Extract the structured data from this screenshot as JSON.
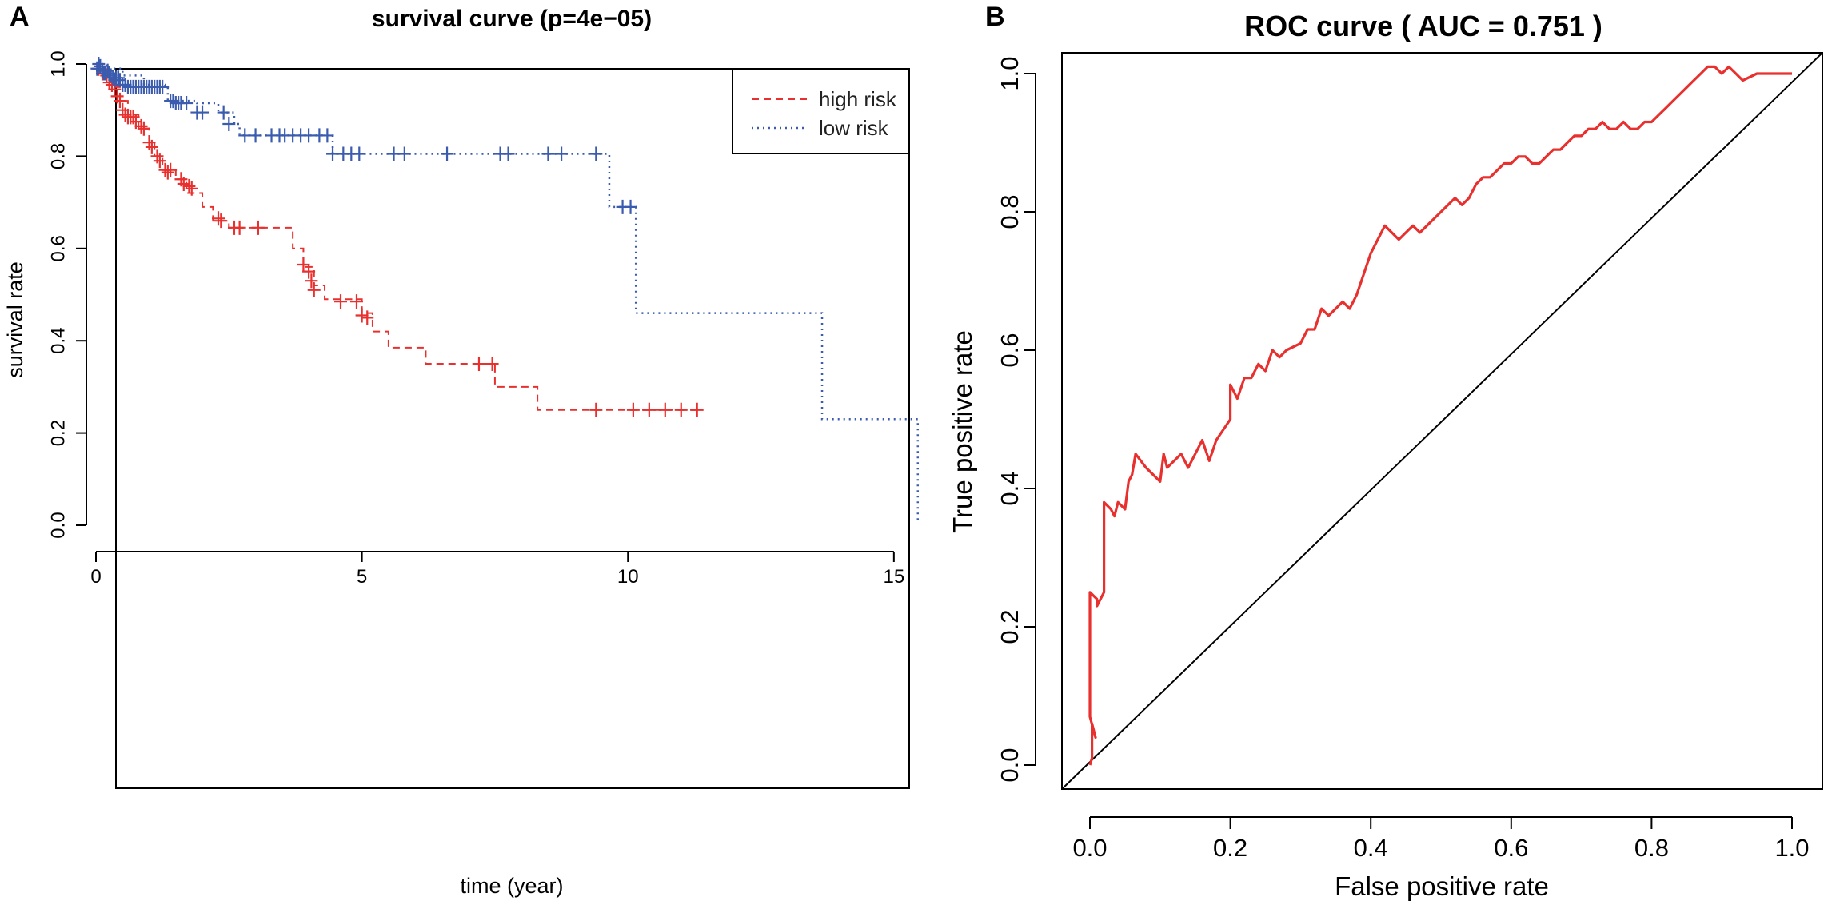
{
  "chart_data": [
    {
      "panel": "A",
      "type": "line",
      "subtype": "kaplan-meier",
      "title": "survival curve (p=4e−05)",
      "xlabel": "time (year)",
      "ylabel": "survival rate",
      "xlim": [
        0,
        15.5
      ],
      "ylim": [
        0,
        1
      ],
      "xticks": [
        0,
        5,
        10,
        15
      ],
      "yticks": [
        0.0,
        0.2,
        0.4,
        0.6,
        0.8,
        1.0
      ],
      "legend": {
        "position": "top-right",
        "entries": [
          "high risk",
          "low risk"
        ]
      },
      "series": [
        {
          "name": "high risk",
          "color": "#e8302e",
          "linestyle": "dashed",
          "steps": [
            [
              0,
              0.99
            ],
            [
              0.15,
              0.97
            ],
            [
              0.3,
              0.95
            ],
            [
              0.45,
              0.92
            ],
            [
              0.6,
              0.89
            ],
            [
              0.8,
              0.86
            ],
            [
              1.0,
              0.83
            ],
            [
              1.1,
              0.8
            ],
            [
              1.25,
              0.77
            ],
            [
              1.5,
              0.75
            ],
            [
              1.7,
              0.72
            ],
            [
              2.0,
              0.69
            ],
            [
              2.2,
              0.66
            ],
            [
              2.5,
              0.645
            ],
            [
              3.7,
              0.6
            ],
            [
              3.9,
              0.56
            ],
            [
              4.1,
              0.52
            ],
            [
              4.3,
              0.49
            ],
            [
              5.0,
              0.46
            ],
            [
              5.2,
              0.42
            ],
            [
              5.5,
              0.385
            ],
            [
              6.2,
              0.35
            ],
            [
              7.5,
              0.3
            ],
            [
              8.3,
              0.25
            ],
            [
              11.3,
              0.25
            ]
          ],
          "censored": [
            [
              0.05,
              0.99
            ],
            [
              0.12,
              0.98
            ],
            [
              0.2,
              0.975
            ],
            [
              0.25,
              0.96
            ],
            [
              0.3,
              0.955
            ],
            [
              0.35,
              0.945
            ],
            [
              0.4,
              0.93
            ],
            [
              0.45,
              0.92
            ],
            [
              0.5,
              0.9
            ],
            [
              0.55,
              0.89
            ],
            [
              0.6,
              0.885
            ],
            [
              0.65,
              0.885
            ],
            [
              0.7,
              0.885
            ],
            [
              0.75,
              0.875
            ],
            [
              0.85,
              0.865
            ],
            [
              0.9,
              0.86
            ],
            [
              1.0,
              0.83
            ],
            [
              1.05,
              0.82
            ],
            [
              1.15,
              0.8
            ],
            [
              1.2,
              0.79
            ],
            [
              1.3,
              0.77
            ],
            [
              1.35,
              0.765
            ],
            [
              1.4,
              0.77
            ],
            [
              1.6,
              0.75
            ],
            [
              1.65,
              0.74
            ],
            [
              1.75,
              0.735
            ],
            [
              1.8,
              0.73
            ],
            [
              2.3,
              0.665
            ],
            [
              2.35,
              0.66
            ],
            [
              2.6,
              0.645
            ],
            [
              2.7,
              0.645
            ],
            [
              3.05,
              0.645
            ],
            [
              3.9,
              0.565
            ],
            [
              4.0,
              0.55
            ],
            [
              4.05,
              0.53
            ],
            [
              4.1,
              0.51
            ],
            [
              4.6,
              0.485
            ],
            [
              4.9,
              0.485
            ],
            [
              5.0,
              0.455
            ],
            [
              5.1,
              0.45
            ],
            [
              7.2,
              0.35
            ],
            [
              7.45,
              0.35
            ],
            [
              9.4,
              0.25
            ],
            [
              10.1,
              0.25
            ],
            [
              10.4,
              0.25
            ],
            [
              10.7,
              0.25
            ],
            [
              11.0,
              0.25
            ],
            [
              11.3,
              0.25
            ]
          ]
        },
        {
          "name": "low risk",
          "color": "#3b5cae",
          "linestyle": "dotted",
          "steps": [
            [
              0,
              1.0
            ],
            [
              0.2,
              0.99
            ],
            [
              0.5,
              0.975
            ],
            [
              0.9,
              0.955
            ],
            [
              1.3,
              0.95
            ],
            [
              1.35,
              0.92
            ],
            [
              1.9,
              0.915
            ],
            [
              2.3,
              0.895
            ],
            [
              2.6,
              0.87
            ],
            [
              2.7,
              0.845
            ],
            [
              4.4,
              0.845
            ],
            [
              4.45,
              0.805
            ],
            [
              9.6,
              0.805
            ],
            [
              9.65,
              0.69
            ],
            [
              10.1,
              0.69
            ],
            [
              10.15,
              0.46
            ],
            [
              13.6,
              0.46
            ],
            [
              13.65,
              0.23
            ],
            [
              15.4,
              0.23
            ],
            [
              15.45,
              0.005
            ]
          ],
          "censored": [
            [
              0.02,
              0.99
            ],
            [
              0.05,
              1.0
            ],
            [
              0.08,
              0.995
            ],
            [
              0.12,
              0.985
            ],
            [
              0.15,
              0.98
            ],
            [
              0.18,
              0.98
            ],
            [
              0.22,
              0.985
            ],
            [
              0.25,
              0.98
            ],
            [
              0.28,
              0.975
            ],
            [
              0.32,
              0.97
            ],
            [
              0.35,
              0.965
            ],
            [
              0.38,
              0.97
            ],
            [
              0.42,
              0.97
            ],
            [
              0.45,
              0.965
            ],
            [
              0.5,
              0.955
            ],
            [
              0.55,
              0.955
            ],
            [
              0.6,
              0.95
            ],
            [
              0.65,
              0.95
            ],
            [
              0.7,
              0.95
            ],
            [
              0.75,
              0.95
            ],
            [
              0.8,
              0.95
            ],
            [
              0.85,
              0.95
            ],
            [
              0.9,
              0.95
            ],
            [
              0.95,
              0.95
            ],
            [
              1.0,
              0.95
            ],
            [
              1.05,
              0.95
            ],
            [
              1.1,
              0.95
            ],
            [
              1.15,
              0.95
            ],
            [
              1.2,
              0.95
            ],
            [
              1.25,
              0.95
            ],
            [
              1.4,
              0.92
            ],
            [
              1.45,
              0.92
            ],
            [
              1.5,
              0.915
            ],
            [
              1.55,
              0.915
            ],
            [
              1.6,
              0.915
            ],
            [
              1.7,
              0.915
            ],
            [
              1.9,
              0.895
            ],
            [
              2.0,
              0.895
            ],
            [
              2.4,
              0.895
            ],
            [
              2.5,
              0.87
            ],
            [
              2.8,
              0.845
            ],
            [
              3.0,
              0.845
            ],
            [
              3.3,
              0.845
            ],
            [
              3.45,
              0.845
            ],
            [
              3.55,
              0.845
            ],
            [
              3.7,
              0.845
            ],
            [
              3.85,
              0.845
            ],
            [
              4.0,
              0.845
            ],
            [
              4.2,
              0.845
            ],
            [
              4.35,
              0.845
            ],
            [
              4.45,
              0.805
            ],
            [
              4.65,
              0.805
            ],
            [
              4.8,
              0.805
            ],
            [
              4.95,
              0.805
            ],
            [
              5.6,
              0.805
            ],
            [
              5.8,
              0.805
            ],
            [
              6.6,
              0.805
            ],
            [
              7.6,
              0.805
            ],
            [
              7.75,
              0.805
            ],
            [
              8.5,
              0.805
            ],
            [
              8.75,
              0.805
            ],
            [
              9.4,
              0.805
            ],
            [
              9.9,
              0.69
            ],
            [
              10.05,
              0.69
            ]
          ]
        }
      ]
    },
    {
      "panel": "B",
      "type": "line",
      "subtype": "roc",
      "title": "ROC curve ( AUC =  0.751 )",
      "xlabel": "False positive rate",
      "ylabel": "True positive rate",
      "xlim": [
        0,
        1
      ],
      "ylim": [
        0,
        1
      ],
      "xticks": [
        0.0,
        0.2,
        0.4,
        0.6,
        0.8,
        1.0
      ],
      "yticks": [
        0.0,
        0.2,
        0.4,
        0.6,
        0.8,
        1.0
      ],
      "auc": 0.751,
      "diagonal": true,
      "series": [
        {
          "name": "ROC",
          "color": "#e8302e",
          "points": [
            [
              0,
              0
            ],
            [
              0.003,
              0.01
            ],
            [
              0.003,
              0.06
            ],
            [
              0.008,
              0.04
            ],
            [
              0.0,
              0.07
            ],
            [
              0.0,
              0.25
            ],
            [
              0.01,
              0.24
            ],
            [
              0.01,
              0.23
            ],
            [
              0.02,
              0.25
            ],
            [
              0.02,
              0.32
            ],
            [
              0.02,
              0.38
            ],
            [
              0.03,
              0.37
            ],
            [
              0.035,
              0.36
            ],
            [
              0.04,
              0.38
            ],
            [
              0.05,
              0.37
            ],
            [
              0.055,
              0.41
            ],
            [
              0.06,
              0.42
            ],
            [
              0.065,
              0.45
            ],
            [
              0.08,
              0.43
            ],
            [
              0.09,
              0.42
            ],
            [
              0.1,
              0.41
            ],
            [
              0.105,
              0.45
            ],
            [
              0.11,
              0.43
            ],
            [
              0.12,
              0.44
            ],
            [
              0.13,
              0.45
            ],
            [
              0.14,
              0.43
            ],
            [
              0.15,
              0.45
            ],
            [
              0.16,
              0.47
            ],
            [
              0.17,
              0.44
            ],
            [
              0.18,
              0.47
            ],
            [
              0.2,
              0.5
            ],
            [
              0.2,
              0.55
            ],
            [
              0.21,
              0.53
            ],
            [
              0.22,
              0.56
            ],
            [
              0.23,
              0.56
            ],
            [
              0.24,
              0.58
            ],
            [
              0.25,
              0.57
            ],
            [
              0.26,
              0.6
            ],
            [
              0.27,
              0.59
            ],
            [
              0.28,
              0.6
            ],
            [
              0.3,
              0.61
            ],
            [
              0.31,
              0.63
            ],
            [
              0.32,
              0.63
            ],
            [
              0.33,
              0.66
            ],
            [
              0.34,
              0.65
            ],
            [
              0.35,
              0.66
            ],
            [
              0.36,
              0.67
            ],
            [
              0.37,
              0.66
            ],
            [
              0.38,
              0.68
            ],
            [
              0.39,
              0.71
            ],
            [
              0.4,
              0.74
            ],
            [
              0.41,
              0.76
            ],
            [
              0.42,
              0.78
            ],
            [
              0.43,
              0.77
            ],
            [
              0.44,
              0.76
            ],
            [
              0.45,
              0.77
            ],
            [
              0.46,
              0.78
            ],
            [
              0.47,
              0.77
            ],
            [
              0.48,
              0.78
            ],
            [
              0.49,
              0.79
            ],
            [
              0.5,
              0.8
            ],
            [
              0.51,
              0.81
            ],
            [
              0.52,
              0.82
            ],
            [
              0.53,
              0.81
            ],
            [
              0.54,
              0.82
            ],
            [
              0.55,
              0.84
            ],
            [
              0.56,
              0.85
            ],
            [
              0.57,
              0.85
            ],
            [
              0.58,
              0.86
            ],
            [
              0.59,
              0.87
            ],
            [
              0.6,
              0.87
            ],
            [
              0.61,
              0.88
            ],
            [
              0.62,
              0.88
            ],
            [
              0.63,
              0.87
            ],
            [
              0.64,
              0.87
            ],
            [
              0.65,
              0.88
            ],
            [
              0.66,
              0.89
            ],
            [
              0.67,
              0.89
            ],
            [
              0.68,
              0.9
            ],
            [
              0.69,
              0.91
            ],
            [
              0.7,
              0.91
            ],
            [
              0.71,
              0.92
            ],
            [
              0.72,
              0.92
            ],
            [
              0.73,
              0.93
            ],
            [
              0.74,
              0.92
            ],
            [
              0.75,
              0.92
            ],
            [
              0.76,
              0.93
            ],
            [
              0.77,
              0.92
            ],
            [
              0.78,
              0.92
            ],
            [
              0.79,
              0.93
            ],
            [
              0.8,
              0.93
            ],
            [
              0.81,
              0.94
            ],
            [
              0.82,
              0.95
            ],
            [
              0.83,
              0.96
            ],
            [
              0.84,
              0.97
            ],
            [
              0.85,
              0.98
            ],
            [
              0.86,
              0.99
            ],
            [
              0.87,
              1.0
            ],
            [
              0.88,
              1.01
            ],
            [
              0.89,
              1.01
            ],
            [
              0.9,
              1.0
            ],
            [
              0.91,
              1.01
            ],
            [
              0.92,
              1.0
            ],
            [
              0.93,
              0.99
            ],
            [
              0.95,
              1.0
            ],
            [
              0.97,
              1.0
            ],
            [
              1.0,
              1.0
            ]
          ]
        }
      ]
    }
  ]
}
